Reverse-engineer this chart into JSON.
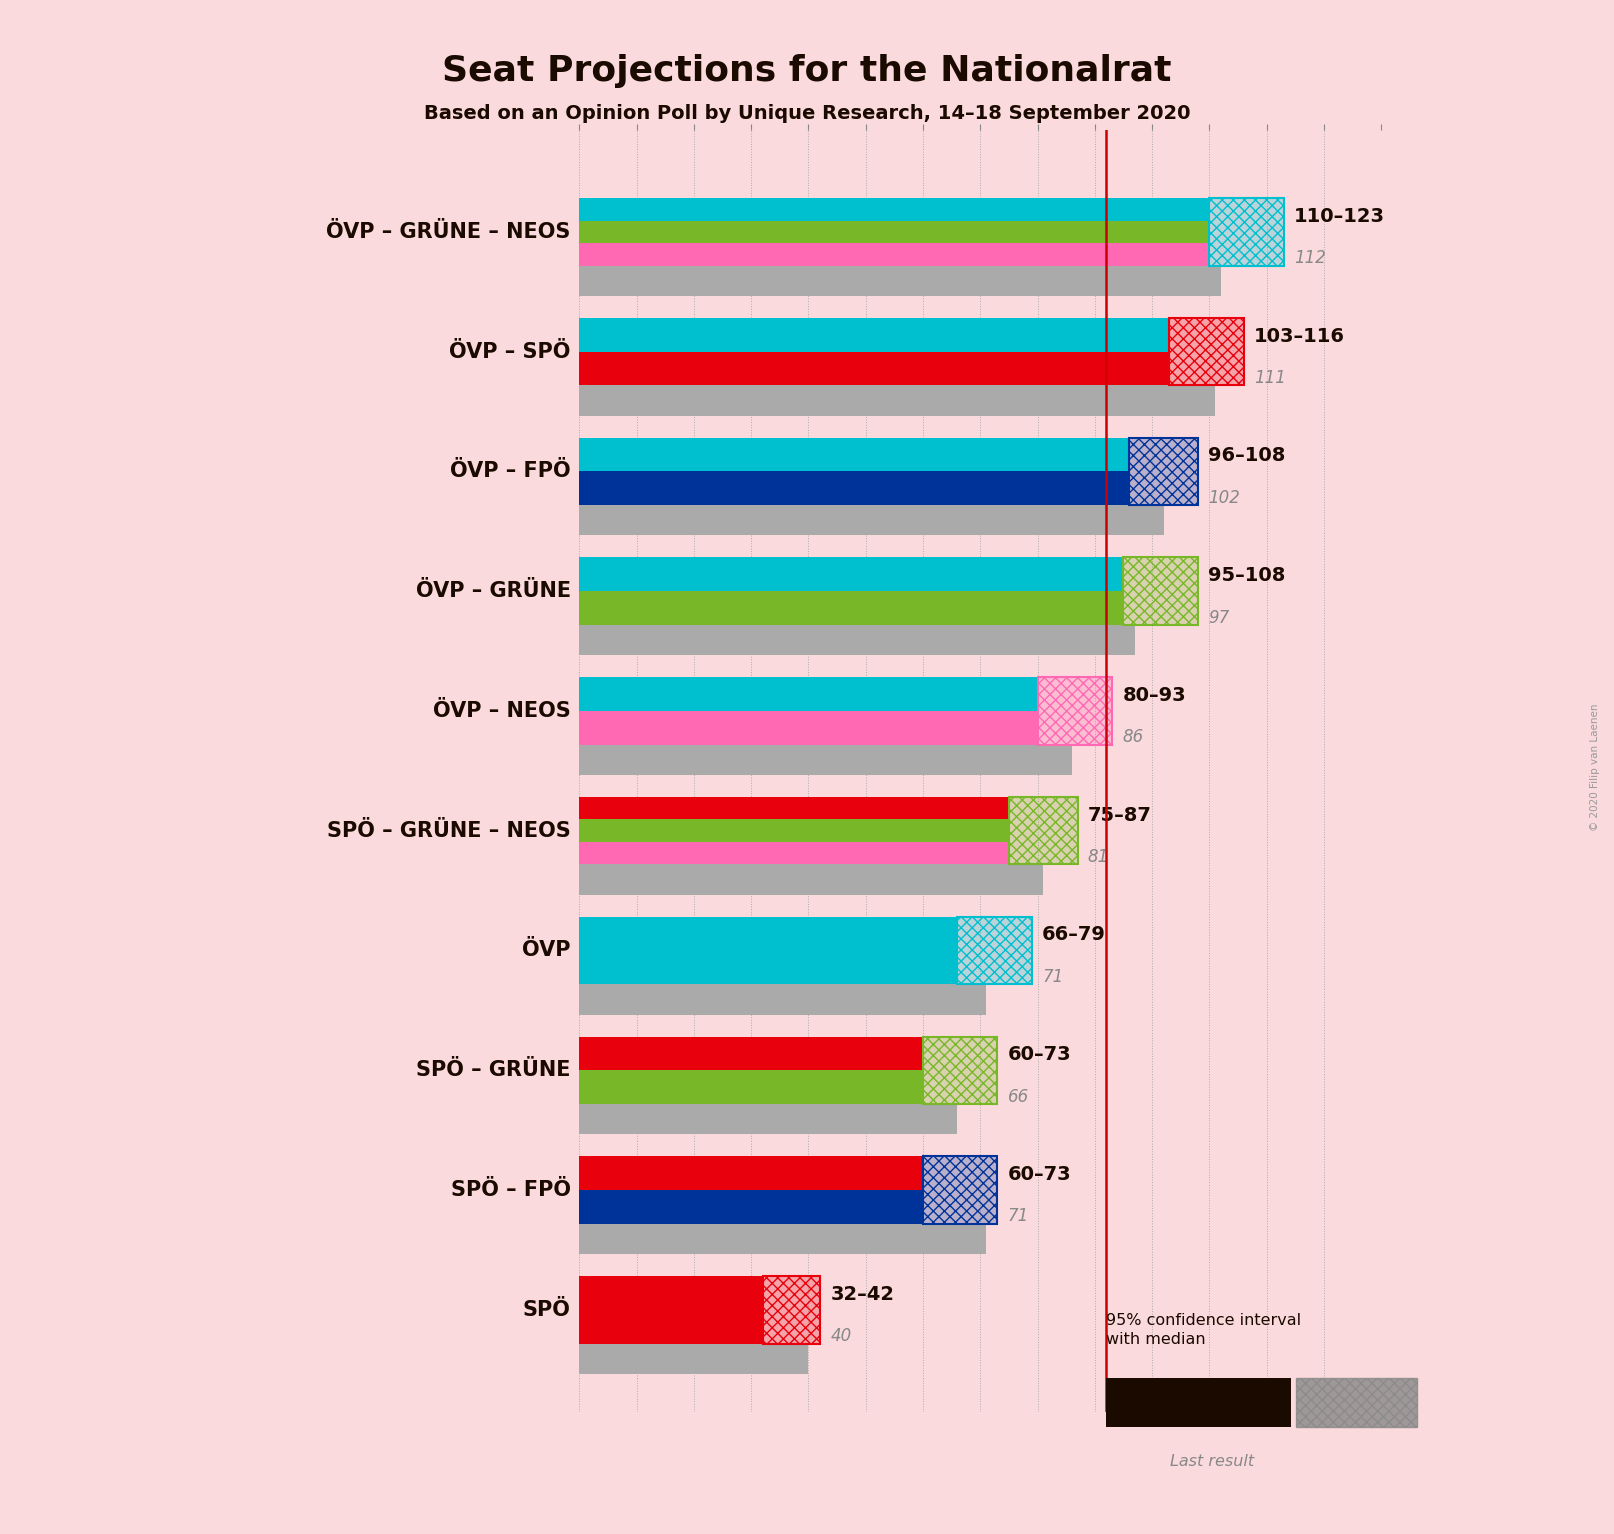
{
  "title": "Seat Projections for the Nationalrat",
  "subtitle": "Based on an Opinion Poll by Unique Research, 14–18 September 2020",
  "background_color": "#FADADD",
  "majority_line": 92,
  "coalitions": [
    {
      "label": "ÖVP – GRÜNE – NEOS",
      "underline": false,
      "colors": [
        "#00BFCE",
        "#78B828",
        "#FF69B4"
      ],
      "range_min": 110,
      "range_max": 123,
      "median": 112,
      "last_result": 112,
      "ci_color": "#00BFCE"
    },
    {
      "label": "ÖVP – SPÖ",
      "underline": false,
      "colors": [
        "#00BFCE",
        "#E8000D"
      ],
      "range_min": 103,
      "range_max": 116,
      "median": 111,
      "last_result": 111,
      "ci_color": "#E8000D"
    },
    {
      "label": "ÖVP – FPÖ",
      "underline": false,
      "colors": [
        "#00BFCE",
        "#003399"
      ],
      "range_min": 96,
      "range_max": 108,
      "median": 102,
      "last_result": 102,
      "ci_color": "#003399"
    },
    {
      "label": "ÖVP – GRÜNE",
      "underline": true,
      "colors": [
        "#00BFCE",
        "#78B828"
      ],
      "range_min": 95,
      "range_max": 108,
      "median": 97,
      "last_result": 97,
      "ci_color": "#78B828"
    },
    {
      "label": "ÖVP – NEOS",
      "underline": false,
      "colors": [
        "#00BFCE",
        "#FF69B4"
      ],
      "range_min": 80,
      "range_max": 93,
      "median": 86,
      "last_result": 86,
      "ci_color": "#FF69B4"
    },
    {
      "label": "SPÖ – GRÜNE – NEOS",
      "underline": false,
      "colors": [
        "#E8000D",
        "#78B828",
        "#FF69B4"
      ],
      "range_min": 75,
      "range_max": 87,
      "median": 81,
      "last_result": 81,
      "ci_color": "#78B828"
    },
    {
      "label": "ÖVP",
      "underline": false,
      "colors": [
        "#00BFCE"
      ],
      "range_min": 66,
      "range_max": 79,
      "median": 71,
      "last_result": 71,
      "ci_color": "#00BFCE"
    },
    {
      "label": "SPÖ – GRÜNE",
      "underline": false,
      "colors": [
        "#E8000D",
        "#78B828"
      ],
      "range_min": 60,
      "range_max": 73,
      "median": 66,
      "last_result": 66,
      "ci_color": "#78B828"
    },
    {
      "label": "SPÖ – FPÖ",
      "underline": false,
      "colors": [
        "#E8000D",
        "#003399"
      ],
      "range_min": 60,
      "range_max": 73,
      "median": 71,
      "last_result": 71,
      "ci_color": "#003399"
    },
    {
      "label": "SPÖ",
      "underline": false,
      "colors": [
        "#E8000D"
      ],
      "range_min": 32,
      "range_max": 42,
      "median": 40,
      "last_result": 40,
      "ci_color": "#E8000D"
    }
  ],
  "xmin": 0,
  "xmax": 133,
  "copyright_text": "© 2020 Filip van Laenen"
}
